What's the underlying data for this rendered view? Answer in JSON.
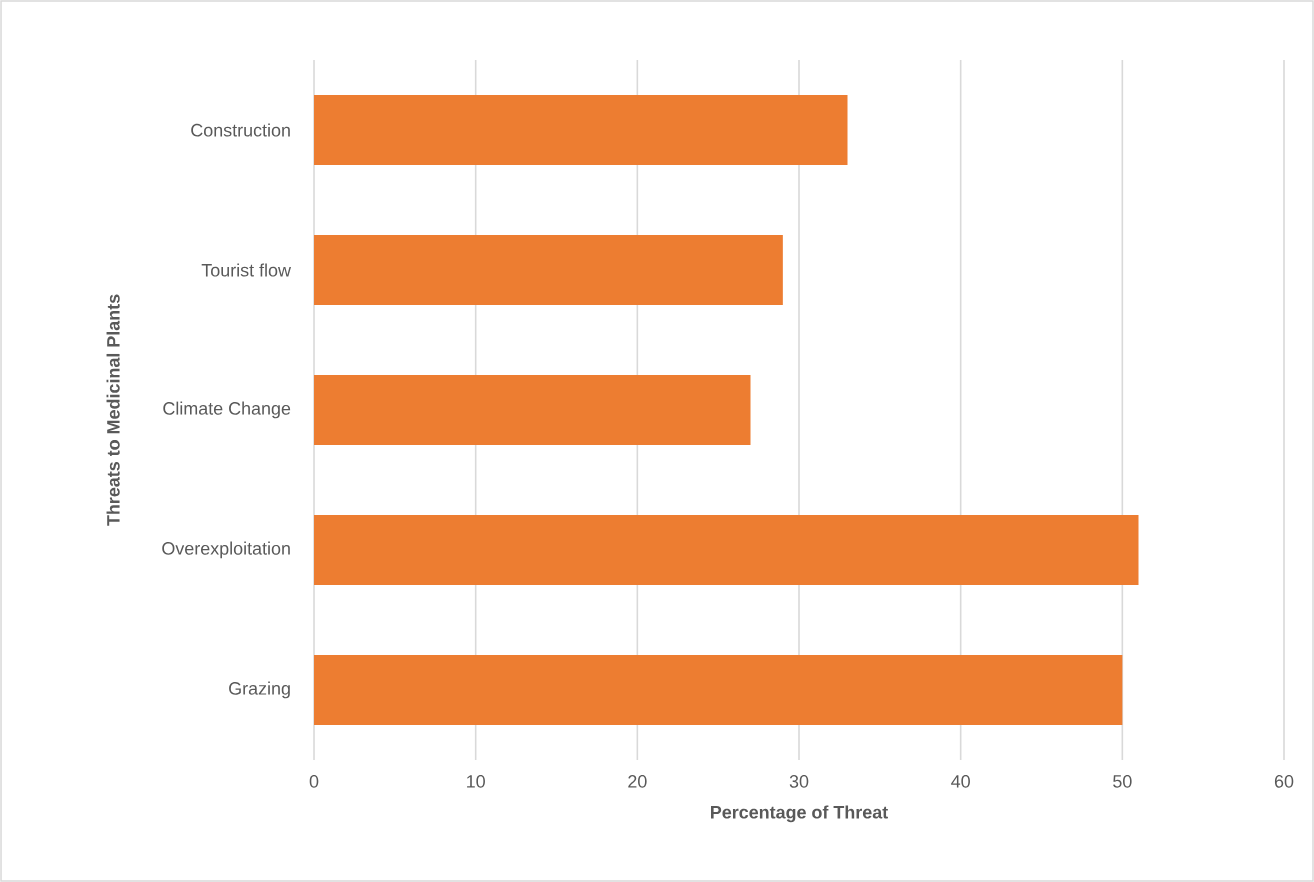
{
  "chart_data": {
    "type": "bar",
    "orientation": "horizontal",
    "xlabel": "Percentage of Threat",
    "ylabel": "Threats to Medicinal Plants",
    "categories": [
      "Construction",
      "Tourist flow",
      "Climate Change",
      "Overexploitation",
      "Grazing"
    ],
    "values": [
      33,
      29,
      27,
      51,
      50
    ],
    "color": "#ed7d31",
    "xlim": [
      0,
      60
    ],
    "xticks": [
      0,
      10,
      20,
      30,
      40,
      50,
      60
    ],
    "grid": "x"
  }
}
